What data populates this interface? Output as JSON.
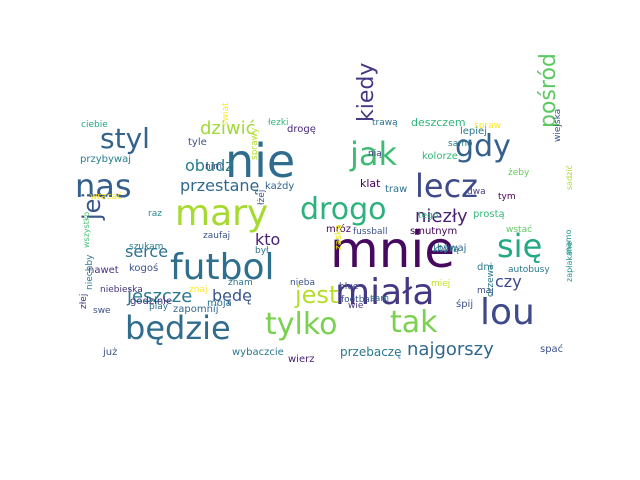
{
  "words": [
    {
      "text": "mnie",
      "color": "#46095f"
    },
    {
      "text": "nie",
      "color": "#2f6c8e"
    },
    {
      "text": "mary",
      "color": "#a7da31"
    },
    {
      "text": "futbol",
      "color": "#2e6f8e"
    },
    {
      "text": "miała",
      "color": "#453882"
    },
    {
      "text": "lou",
      "color": "#3e4a89"
    },
    {
      "text": "będzie",
      "color": "#2f6c8e"
    },
    {
      "text": "tylko",
      "color": "#7ad151"
    },
    {
      "text": "jak",
      "color": "#3fbc73"
    },
    {
      "text": "nas",
      "color": "#35608d"
    },
    {
      "text": "drogo",
      "color": "#2db27d"
    },
    {
      "text": "lecz",
      "color": "#3e4a89"
    },
    {
      "text": "tak",
      "color": "#7ad151"
    },
    {
      "text": "się",
      "color": "#23a983"
    },
    {
      "text": "gdy",
      "color": "#355f8d"
    },
    {
      "text": "styl",
      "color": "#33638d"
    },
    {
      "text": "jest",
      "color": "#b5de2b"
    },
    {
      "text": "kiedy",
      "color": "#443983"
    },
    {
      "text": "jej",
      "color": "#39558c"
    },
    {
      "text": "pośród",
      "color": "#5ec962"
    },
    {
      "text": "najgorszy",
      "color": "#31688e"
    },
    {
      "text": "jeszcze",
      "color": "#2a788e"
    },
    {
      "text": "dziwić",
      "color": "#a0da39"
    },
    {
      "text": "przestanę",
      "color": "#31688e"
    },
    {
      "text": "niezły",
      "color": "#482173"
    },
    {
      "text": "obudź",
      "color": "#287c8e"
    },
    {
      "text": "serce",
      "color": "#2c728e"
    },
    {
      "text": "kto",
      "color": "#482173"
    },
    {
      "text": "będę",
      "color": "#39568c"
    },
    {
      "text": "czy",
      "color": "#3e4989"
    },
    {
      "text": "ciebie",
      "color": "#20a386"
    },
    {
      "text": "łezki",
      "color": "#35b779"
    },
    {
      "text": "trawą",
      "color": "#2c718e"
    },
    {
      "text": "deszczem",
      "color": "#31b57b"
    },
    {
      "text": "spraw",
      "color": "#fde725"
    },
    {
      "text": "lepiej",
      "color": "#2a778e"
    },
    {
      "text": "tyle",
      "color": "#3b528b"
    },
    {
      "text": "świat",
      "color": "#fde725"
    },
    {
      "text": "drogę",
      "color": "#482878"
    },
    {
      "text": "nią",
      "color": "#443a83"
    },
    {
      "text": "samo",
      "color": "#287d8e"
    },
    {
      "text": "wiejska",
      "color": "#3b528b"
    },
    {
      "text": "przybywaj",
      "color": "#277f8e"
    },
    {
      "text": "nim",
      "color": "#414487"
    },
    {
      "text": "sprawy",
      "color": "#b5de2b"
    },
    {
      "text": "kolorze",
      "color": "#35b779"
    },
    {
      "text": "żeby",
      "color": "#65cb5e"
    },
    {
      "text": "każdy",
      "color": "#33638d"
    },
    {
      "text": "klat",
      "color": "#440154"
    },
    {
      "text": "traw",
      "color": "#2c728e"
    },
    {
      "text": "dwa",
      "color": "#424086"
    },
    {
      "text": "tym",
      "color": "#440154"
    },
    {
      "text": "sadzić",
      "color": "#a8db34"
    },
    {
      "text": "wracać",
      "color": "#fde725"
    },
    {
      "text": "raz",
      "color": "#23898e"
    },
    {
      "text": "łżej",
      "color": "#3b528b"
    },
    {
      "text": "tego",
      "color": "#32b67a"
    },
    {
      "text": "prostą",
      "color": "#37b878"
    },
    {
      "text": "wstać",
      "color": "#5ec962"
    },
    {
      "text": "wszystko",
      "color": "#44bf70"
    },
    {
      "text": "zaufaj",
      "color": "#3b528b"
    },
    {
      "text": "szukam",
      "color": "#287d8e"
    },
    {
      "text": "mróz",
      "color": "#46085c"
    },
    {
      "text": "fussball",
      "color": "#3b528b"
    },
    {
      "text": "smutnym",
      "color": "#440154"
    },
    {
      "text": "którą",
      "color": "#26828e"
    },
    {
      "text": "był",
      "color": "#2c728e"
    },
    {
      "text": "bywaj",
      "color": "#31688e"
    },
    {
      "text": "nawet",
      "color": "#46327e"
    },
    {
      "text": "kogoś",
      "color": "#3b528b"
    },
    {
      "text": "żaska",
      "color": "#e5e419"
    },
    {
      "text": "dni",
      "color": "#287d8e"
    },
    {
      "text": "autobusy",
      "color": "#2a788e"
    },
    {
      "text": "mamo",
      "color": "#1f958b"
    },
    {
      "text": "niechby",
      "color": "#2a788e"
    },
    {
      "text": "niebieska",
      "color": "#46327e"
    },
    {
      "text": "znaj",
      "color": "#fde725"
    },
    {
      "text": "znam",
      "color": "#2c728e"
    },
    {
      "text": "nieba",
      "color": "#3b528b"
    },
    {
      "text": "blue",
      "color": "#3e4989"
    },
    {
      "text": "miej",
      "color": "#c8e020"
    },
    {
      "text": "maj",
      "color": "#3e4989"
    },
    {
      "text": "drzewa",
      "color": "#2a788e"
    },
    {
      "text": "zapłakane",
      "color": "#21918c"
    },
    {
      "text": "play",
      "color": "#2c728e"
    },
    {
      "text": "moja",
      "color": "#2c728e"
    },
    {
      "text": "football",
      "color": "#3b528b"
    },
    {
      "text": "wie",
      "color": "#46327e"
    },
    {
      "text": "swe",
      "color": "#3b528b"
    },
    {
      "text": "godzinie",
      "color": "#46327e"
    },
    {
      "text": "złej",
      "color": "#46327e"
    },
    {
      "text": "sam",
      "color": "#2c728e"
    },
    {
      "text": "śpij",
      "color": "#3b528b"
    },
    {
      "text": "zapomnij",
      "color": "#31688e"
    },
    {
      "text": "wybaczcie",
      "color": "#2a788e"
    },
    {
      "text": "wierz",
      "color": "#482173"
    },
    {
      "text": "przebaczę",
      "color": "#2a788e"
    },
    {
      "text": "spać",
      "color": "#3b528b"
    },
    {
      "text": "już",
      "color": "#3b528b"
    }
  ]
}
